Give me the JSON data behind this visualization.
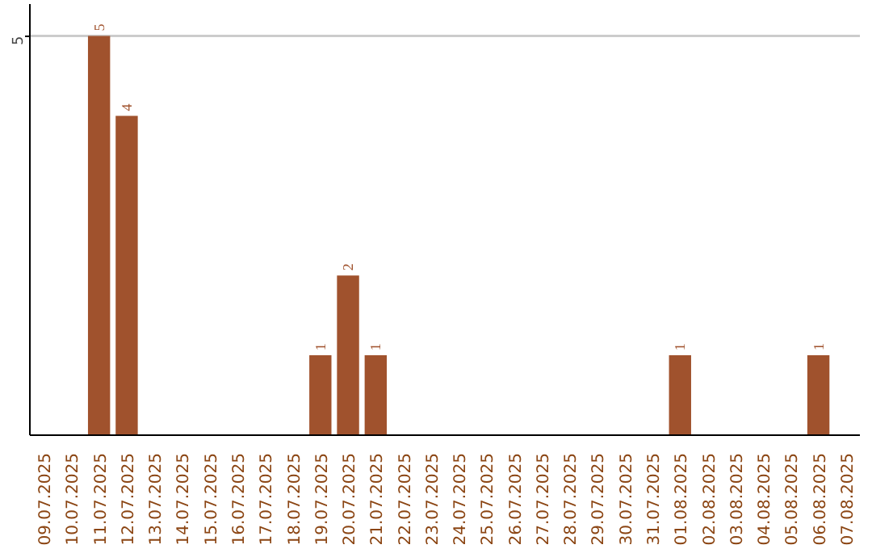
{
  "chart_data": {
    "type": "bar",
    "categories": [
      "09.07.2025",
      "10.07.2025",
      "11.07.2025",
      "12.07.2025",
      "13.07.2025",
      "14.07.2025",
      "15.07.2025",
      "16.07.2025",
      "17.07.2025",
      "18.07.2025",
      "19.07.2025",
      "20.07.2025",
      "21.07.2025",
      "22.07.2025",
      "23.07.2025",
      "24.07.2025",
      "25.07.2025",
      "26.07.2025",
      "27.07.2025",
      "28.07.2025",
      "29.07.2025",
      "30.07.2025",
      "31.07.2025",
      "01.08.2025",
      "02.08.2025",
      "03.08.2025",
      "04.08.2025",
      "05.08.2025",
      "06.08.2025",
      "07.08.2025"
    ],
    "values": [
      0,
      0,
      5,
      4,
      0,
      0,
      0,
      0,
      0,
      0,
      1,
      2,
      1,
      0,
      0,
      0,
      0,
      0,
      0,
      0,
      0,
      0,
      0,
      1,
      0,
      0,
      0,
      0,
      1,
      0
    ],
    "value_labels": [
      null,
      null,
      "5",
      "4",
      null,
      null,
      null,
      null,
      null,
      null,
      "1",
      "2",
      "1",
      null,
      null,
      null,
      null,
      null,
      null,
      null,
      null,
      null,
      null,
      "1",
      null,
      null,
      null,
      null,
      "1",
      null
    ],
    "color": "#a0522d",
    "ylim": [
      0,
      5.4
    ],
    "yticks": [
      5
    ],
    "grid": "y"
  }
}
